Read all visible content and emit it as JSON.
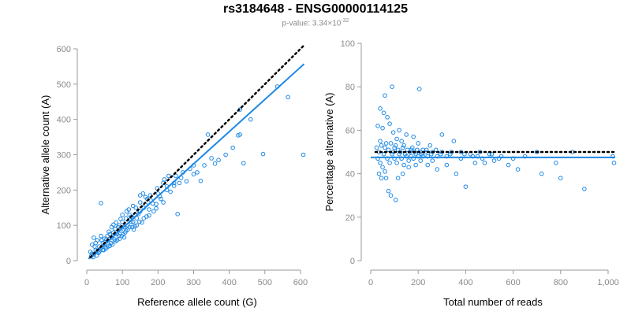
{
  "header": {
    "title": "rs3184648 - ENSG00000114125",
    "subtitle_prefix": "p-value: 3.34×10",
    "subtitle_exp": "-32"
  },
  "colors": {
    "points": "#1e88e5",
    "fit_line": "#1e88e5",
    "reference_line": "#000000",
    "axis": "#9a9a9a",
    "tick_text": "#8a8a8a"
  },
  "chart_data": [
    {
      "type": "scatter",
      "xlabel": "Reference allele count (G)",
      "ylabel": "Alternative allele count (A)",
      "xlim": [
        0,
        620
      ],
      "ylim": [
        0,
        600
      ],
      "xticks": [
        0,
        100,
        200,
        300,
        400,
        500,
        600
      ],
      "yticks": [
        0,
        100,
        200,
        300,
        400,
        500,
        600
      ],
      "xtick_labels": [
        "0",
        "100",
        "200",
        "300",
        "400",
        "500",
        "600"
      ],
      "ytick_labels": [
        "0",
        "100",
        "200",
        "300",
        "400",
        "500",
        "600"
      ],
      "reference_line": {
        "style": "dotted",
        "x": [
          10,
          610
        ],
        "y": [
          10,
          610
        ]
      },
      "fit_line": {
        "style": "solid",
        "x": [
          5,
          610
        ],
        "y": [
          5,
          557
        ]
      },
      "points": [
        [
          40,
          163
        ],
        [
          535,
          493
        ],
        [
          565,
          463
        ],
        [
          608,
          300
        ],
        [
          430,
          428
        ],
        [
          460,
          400
        ],
        [
          340,
          357
        ],
        [
          430,
          357
        ],
        [
          495,
          302
        ],
        [
          440,
          276
        ],
        [
          360,
          275
        ],
        [
          320,
          226
        ],
        [
          300,
          245
        ],
        [
          265,
          235
        ],
        [
          255,
          132
        ],
        [
          300,
          270
        ],
        [
          245,
          220
        ],
        [
          230,
          240
        ],
        [
          225,
          200
        ],
        [
          215,
          220
        ],
        [
          200,
          190
        ],
        [
          195,
          160
        ],
        [
          180,
          170
        ],
        [
          175,
          145
        ],
        [
          165,
          180
        ],
        [
          160,
          150
        ],
        [
          150,
          165
        ],
        [
          150,
          140
        ],
        [
          140,
          120
        ],
        [
          135,
          130
        ],
        [
          130,
          155
        ],
        [
          125,
          110
        ],
        [
          120,
          130
        ],
        [
          115,
          100
        ],
        [
          110,
          120
        ],
        [
          105,
          95
        ],
        [
          100,
          110
        ],
        [
          95,
          85
        ],
        [
          90,
          100
        ],
        [
          85,
          75
        ],
        [
          80,
          90
        ],
        [
          75,
          80
        ],
        [
          70,
          65
        ],
        [
          65,
          75
        ],
        [
          60,
          55
        ],
        [
          55,
          60
        ],
        [
          50,
          45
        ],
        [
          45,
          50
        ],
        [
          40,
          35
        ],
        [
          35,
          40
        ],
        [
          30,
          28
        ],
        [
          25,
          30
        ],
        [
          20,
          18
        ],
        [
          15,
          20
        ],
        [
          12,
          12
        ],
        [
          10,
          25
        ],
        [
          18,
          10
        ],
        [
          28,
          15
        ],
        [
          22,
          40
        ],
        [
          33,
          22
        ],
        [
          48,
          30
        ],
        [
          58,
          70
        ],
        [
          68,
          50
        ],
        [
          78,
          60
        ],
        [
          88,
          95
        ],
        [
          98,
          70
        ],
        [
          108,
          80
        ],
        [
          118,
          145
        ],
        [
          128,
          95
        ],
        [
          138,
          150
        ],
        [
          148,
          110
        ],
        [
          158,
          190
        ],
        [
          168,
          125
        ],
        [
          178,
          185
        ],
        [
          188,
          140
        ],
        [
          198,
          205
        ],
        [
          208,
          175
        ],
        [
          218,
          230
        ],
        [
          60,
          40
        ],
        [
          70,
          95
        ],
        [
          80,
          55
        ],
        [
          90,
          70
        ],
        [
          100,
          130
        ],
        [
          110,
          85
        ],
        [
          120,
          95
        ],
        [
          130,
          110
        ],
        [
          140,
          100
        ],
        [
          150,
          185
        ],
        [
          160,
          120
        ],
        [
          170,
          175
        ],
        [
          42,
          58
        ],
        [
          52,
          38
        ],
        [
          62,
          82
        ],
        [
          72,
          46
        ],
        [
          82,
          108
        ],
        [
          92,
          62
        ],
        [
          102,
          74
        ],
        [
          112,
          140
        ],
        [
          122,
          116
        ],
        [
          132,
          88
        ],
        [
          15,
          45
        ],
        [
          20,
          65
        ],
        [
          25,
          50
        ],
        [
          30,
          58
        ],
        [
          35,
          25
        ],
        [
          40,
          70
        ],
        [
          45,
          30
        ],
        [
          50,
          62
        ],
        [
          55,
          35
        ],
        [
          65,
          42
        ],
        [
          75,
          102
        ],
        [
          85,
          58
        ],
        [
          95,
          118
        ],
        [
          105,
          66
        ],
        [
          115,
          88
        ],
        [
          125,
          124
        ],
        [
          135,
          98
        ],
        [
          145,
          132
        ],
        [
          155,
          108
        ],
        [
          165,
          158
        ],
        [
          175,
          128
        ],
        [
          185,
          162
        ],
        [
          195,
          148
        ],
        [
          205,
          182
        ],
        [
          215,
          165
        ],
        [
          225,
          210
        ],
        [
          235,
          195
        ],
        [
          245,
          212
        ],
        [
          250,
          240
        ],
        [
          260,
          220
        ],
        [
          270,
          250
        ],
        [
          280,
          225
        ],
        [
          290,
          260
        ],
        [
          310,
          250
        ],
        [
          330,
          270
        ],
        [
          350,
          290
        ],
        [
          370,
          285
        ],
        [
          390,
          300
        ],
        [
          410,
          320
        ],
        [
          425,
          355
        ]
      ]
    },
    {
      "type": "scatter",
      "xlabel": "Total number of reads",
      "ylabel": "Percentage alternative (A)",
      "xlim": [
        0,
        1030
      ],
      "ylim": [
        0,
        100
      ],
      "xticks": [
        0,
        200,
        400,
        600,
        800,
        1000
      ],
      "yticks": [
        0,
        20,
        40,
        60,
        80,
        100
      ],
      "xtick_labels": [
        "0",
        "200",
        "400",
        "600",
        "800",
        "1,000"
      ],
      "ytick_labels": [
        "0",
        "20",
        "40",
        "60",
        "80",
        "100"
      ],
      "reference_line": {
        "style": "dotted",
        "x": [
          20,
          1030
        ],
        "y": [
          50,
          50
        ]
      },
      "fit_line": {
        "style": "solid",
        "x": [
          0,
          1030
        ],
        "y": [
          47.5,
          47.5
        ]
      },
      "points": [
        [
          90,
          80
        ],
        [
          205,
          79
        ],
        [
          60,
          76
        ],
        [
          40,
          70
        ],
        [
          55,
          68
        ],
        [
          70,
          66
        ],
        [
          80,
          63
        ],
        [
          30,
          62
        ],
        [
          50,
          61
        ],
        [
          120,
          60
        ],
        [
          95,
          59
        ],
        [
          150,
          58
        ],
        [
          180,
          57
        ],
        [
          110,
          56
        ],
        [
          40,
          55
        ],
        [
          65,
          54
        ],
        [
          130,
          55
        ],
        [
          200,
          54
        ],
        [
          250,
          53
        ],
        [
          300,
          58
        ],
        [
          350,
          55
        ],
        [
          60,
          52
        ],
        [
          100,
          52
        ],
        [
          140,
          53
        ],
        [
          170,
          51
        ],
        [
          220,
          51
        ],
        [
          260,
          50
        ],
        [
          300,
          50
        ],
        [
          340,
          50
        ],
        [
          380,
          50
        ],
        [
          420,
          49
        ],
        [
          460,
          50
        ],
        [
          500,
          49
        ],
        [
          550,
          48
        ],
        [
          600,
          47
        ],
        [
          650,
          48
        ],
        [
          700,
          50
        ],
        [
          780,
          45
        ],
        [
          850,
          50
        ],
        [
          1020,
          48
        ],
        [
          1025,
          45
        ],
        [
          900,
          33
        ],
        [
          800,
          38
        ],
        [
          720,
          40
        ],
        [
          620,
          42
        ],
        [
          580,
          44
        ],
        [
          520,
          46
        ],
        [
          480,
          45
        ],
        [
          440,
          45
        ],
        [
          400,
          34
        ],
        [
          360,
          40
        ],
        [
          320,
          44
        ],
        [
          280,
          42
        ],
        [
          240,
          44
        ],
        [
          210,
          46
        ],
        [
          190,
          44
        ],
        [
          160,
          43
        ],
        [
          135,
          40
        ],
        [
          115,
          38
        ],
        [
          105,
          28
        ],
        [
          85,
          30
        ],
        [
          75,
          32
        ],
        [
          65,
          38
        ],
        [
          45,
          38
        ],
        [
          35,
          40
        ],
        [
          30,
          47
        ],
        [
          40,
          45
        ],
        [
          50,
          43
        ],
        [
          60,
          41
        ],
        [
          70,
          47
        ],
        [
          80,
          45
        ],
        [
          90,
          49
        ],
        [
          100,
          47
        ],
        [
          110,
          45
        ],
        [
          120,
          49
        ],
        [
          130,
          47
        ],
        [
          140,
          44
        ],
        [
          150,
          48
        ],
        [
          160,
          46
        ],
        [
          170,
          48
        ],
        [
          180,
          47
        ],
        [
          190,
          49
        ],
        [
          200,
          48
        ],
        [
          210,
          50
        ],
        [
          220,
          48
        ],
        [
          230,
          50
        ],
        [
          240,
          48
        ],
        [
          260,
          46
        ],
        [
          280,
          48
        ],
        [
          320,
          48
        ],
        [
          380,
          47
        ],
        [
          430,
          48
        ],
        [
          470,
          47
        ],
        [
          540,
          47
        ],
        [
          25,
          52
        ],
        [
          35,
          50
        ],
        [
          45,
          53
        ],
        [
          55,
          49
        ],
        [
          75,
          51
        ],
        [
          85,
          54
        ],
        [
          95,
          50
        ],
        [
          105,
          53
        ],
        [
          115,
          51
        ],
        [
          125,
          50
        ],
        [
          135,
          52
        ],
        [
          145,
          49
        ],
        [
          155,
          51
        ],
        [
          165,
          50
        ],
        [
          175,
          52
        ],
        [
          185,
          50
        ],
        [
          195,
          51
        ],
        [
          215,
          49
        ],
        [
          235,
          51
        ],
        [
          255,
          49
        ],
        [
          275,
          51
        ],
        [
          295,
          49
        ],
        [
          335,
          49
        ],
        [
          395,
          49
        ],
        [
          450,
          48
        ],
        [
          510,
          49
        ]
      ]
    }
  ]
}
